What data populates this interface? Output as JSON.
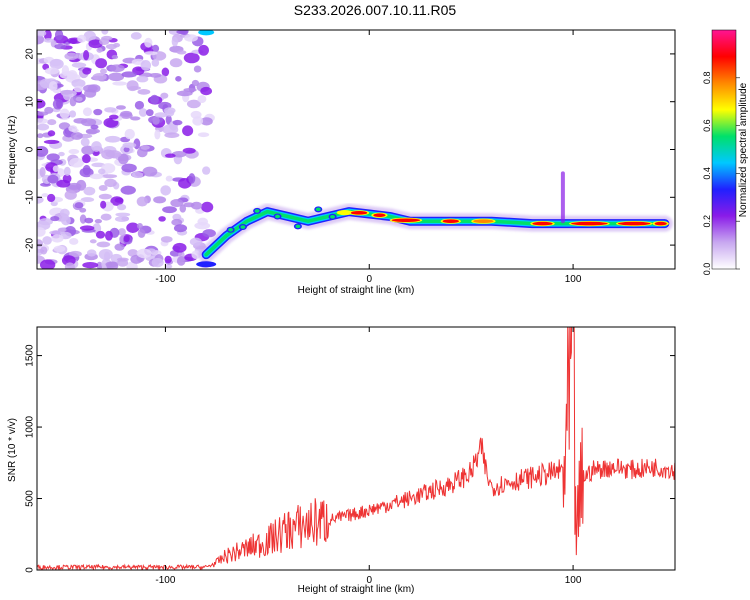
{
  "title": "S233.2026.007.10.11.R05",
  "chart_data": [
    {
      "type": "heatmap",
      "xlabel": "Height of straight line (km)",
      "ylabel": "Frequency (Hz)",
      "xlim": [
        -163,
        150
      ],
      "ylim": [
        -25,
        25
      ],
      "x_ticks": [
        -100,
        0,
        100
      ],
      "y_ticks": [
        -20,
        -10,
        0,
        10,
        20
      ],
      "colorbar": {
        "label": "Normalized spectral amplitude",
        "range": [
          0,
          1
        ],
        "ticks": [
          "0.0",
          "0.2",
          "0.4",
          "0.6",
          "0.8"
        ],
        "colors": [
          "#ffffff",
          "#c8a8f0",
          "#8a1ce8",
          "#2020ff",
          "#00c8ff",
          "#00e06a",
          "#ffff00",
          "#ff8800",
          "#ff0000",
          "#ff1493"
        ]
      },
      "ridge": {
        "x": [
          -80,
          -70,
          -60,
          -50,
          -40,
          -30,
          -20,
          -10,
          0,
          10,
          20,
          40,
          60,
          80,
          100,
          120,
          145
        ],
        "frequency": [
          -22,
          -18,
          -15,
          -13,
          -14,
          -15,
          -14,
          -13,
          -13.5,
          -14,
          -15,
          -15,
          -15,
          -15.5,
          -15.5,
          -15.5,
          -15.5
        ]
      },
      "notes": "Broadband noise (purple) for x < -80 km; narrow red spectral line near -15 Hz for x > 0 km"
    },
    {
      "type": "line",
      "xlabel": "Height of straight line (km)",
      "ylabel": "SNR (10 * v/v)",
      "xlim": [
        -163,
        150
      ],
      "ylim": [
        0,
        1700
      ],
      "x_ticks": [
        -100,
        0,
        100
      ],
      "y_ticks": [
        0,
        500,
        1000,
        1500
      ],
      "series": [
        {
          "color": "#ee3333",
          "x": [
            -163,
            -120,
            -80,
            -75,
            -70,
            -60,
            -50,
            -40,
            -30,
            -20,
            -10,
            0,
            10,
            20,
            30,
            40,
            50,
            55,
            58,
            60,
            70,
            80,
            90,
            95,
            98,
            100,
            101,
            102,
            105,
            110,
            120,
            130,
            140,
            150
          ],
          "y": [
            20,
            20,
            20,
            50,
            100,
            150,
            200,
            280,
            320,
            350,
            380,
            420,
            460,
            500,
            550,
            600,
            680,
            850,
            650,
            580,
            620,
            650,
            680,
            700,
            1000,
            1680,
            400,
            300,
            650,
            700,
            720,
            700,
            720,
            700
          ]
        }
      ]
    }
  ]
}
